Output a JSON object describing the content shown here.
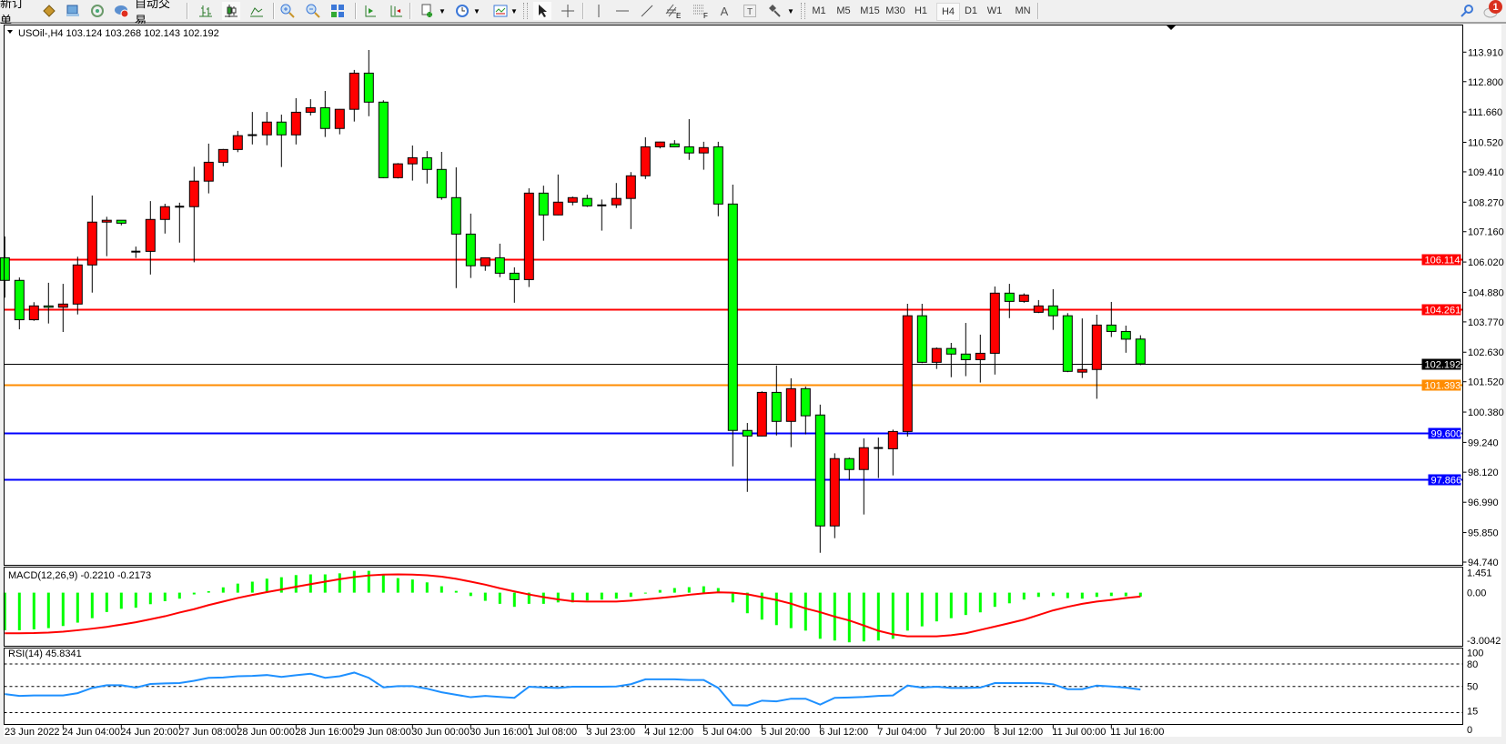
{
  "toolbar": {
    "new_order": "新订单",
    "auto_trading": "自动交易",
    "tools": [
      "cursor-icon",
      "crosshair-icon",
      "vertical-line-icon",
      "horizontal-line-icon",
      "trendline-icon",
      "equidistant-channel-icon",
      "fibonacci-icon",
      "text-icon",
      "text-label-icon",
      "arrows-icon"
    ],
    "tool_letters": {
      "channel": "E",
      "fibonacci": "F",
      "text": "A",
      "label": "T"
    },
    "timeframes": [
      "M1",
      "M5",
      "M15",
      "M30",
      "H1",
      "H4",
      "D1",
      "W1",
      "MN"
    ],
    "active_timeframe": "H4",
    "notification_count": "1"
  },
  "chart": {
    "header": "USOil-,H4  103.124 103.268 102.143 102.192",
    "symbol": "USOil-",
    "period": "H4",
    "colors": {
      "bull_candle": "#ff0000",
      "bear_candle": "#00ff00",
      "doji": "#000000",
      "macd_histogram": "#00ff00",
      "macd_signal": "#ff0000",
      "rsi_line": "#1e90ff"
    },
    "price_ticks": [
      "113.910",
      "112.800",
      "111.660",
      "110.520",
      "109.410",
      "108.270",
      "107.160",
      "106.020",
      "104.880",
      "103.770",
      "102.630",
      "101.520",
      "100.380",
      "99.240",
      "98.120",
      "96.990",
      "95.850",
      "94.740"
    ],
    "price_range": [
      94.74,
      113.91
    ],
    "horizontal_lines": [
      {
        "price": 106.114,
        "label": "106.114",
        "color": "#ff0000"
      },
      {
        "price": 104.261,
        "label": "104.261",
        "color": "#ff0000"
      },
      {
        "price": 102.192,
        "label": "102.192",
        "color": "#000000"
      },
      {
        "price": 101.393,
        "label": "101.393",
        "color": "#ff8c00"
      },
      {
        "price": 99.6,
        "label": "99.600",
        "color": "#0000ff"
      },
      {
        "price": 97.866,
        "label": "97.866",
        "color": "#0000ff"
      }
    ],
    "time_axis": {
      "first_label": "23 Jun 2022",
      "labels": [
        "24 Jun 04:00",
        "24 Jun 20:00",
        "27 Jun 08:00",
        "28 Jun 00:00",
        "28 Jun 16:00",
        "29 Jun 08:00",
        "30 Jun 00:00",
        "30 Jun 16:00",
        "1 Jul 08:00",
        "3 Jul 23:00",
        "4 Jul 12:00",
        "5 Jul 04:00",
        "5 Jul 20:00",
        "6 Jul 12:00",
        "7 Jul 04:00",
        "7 Jul 20:00",
        "8 Jul 12:00",
        "11 Jul 00:00",
        "11 Jul 16:00"
      ]
    }
  },
  "chart_data": [
    {
      "type": "candlestick",
      "title": "USOil-,H4",
      "fields": [
        "open",
        "high",
        "low",
        "close"
      ],
      "ylim": [
        94.74,
        113.91
      ],
      "ohlc": [
        [
          106.18,
          106.98,
          104.68,
          105.33
        ],
        [
          105.33,
          105.44,
          103.49,
          103.85
        ],
        [
          103.85,
          104.51,
          103.81,
          104.37
        ],
        [
          104.37,
          105.24,
          103.71,
          104.32
        ],
        [
          104.32,
          105.2,
          103.39,
          104.44
        ],
        [
          104.44,
          106.22,
          104.05,
          105.91
        ],
        [
          105.91,
          108.52,
          104.87,
          107.52
        ],
        [
          107.52,
          107.72,
          106.24,
          107.59
        ],
        [
          107.59,
          107.59,
          107.4,
          107.48
        ],
        [
          106.41,
          106.6,
          106.17,
          106.41
        ],
        [
          106.42,
          108.31,
          105.55,
          107.62
        ],
        [
          107.62,
          108.21,
          107.09,
          108.1
        ],
        [
          108.1,
          108.25,
          106.75,
          108.1
        ],
        [
          108.1,
          109.6,
          106.01,
          109.06
        ],
        [
          109.06,
          110.47,
          108.6,
          109.77
        ],
        [
          109.77,
          110.27,
          109.62,
          110.25
        ],
        [
          110.25,
          110.95,
          110.15,
          110.77
        ],
        [
          110.79,
          111.66,
          110.44,
          110.79
        ],
        [
          110.8,
          111.66,
          110.41,
          111.28
        ],
        [
          111.28,
          111.56,
          109.59,
          110.8
        ],
        [
          110.8,
          112.18,
          110.44,
          111.65
        ],
        [
          111.65,
          112.14,
          111.53,
          111.82
        ],
        [
          111.82,
          112.45,
          110.72,
          111.04
        ],
        [
          111.04,
          111.77,
          110.82,
          111.76
        ],
        [
          111.76,
          113.24,
          111.3,
          113.12
        ],
        [
          113.12,
          113.99,
          111.5,
          112.03
        ],
        [
          112.03,
          112.1,
          109.17,
          109.19
        ],
        [
          109.19,
          109.74,
          109.16,
          109.71
        ],
        [
          109.71,
          110.4,
          109.08,
          109.94
        ],
        [
          109.94,
          110.19,
          108.97,
          109.5
        ],
        [
          109.5,
          110.16,
          108.36,
          108.44
        ],
        [
          108.44,
          109.58,
          105.04,
          107.07
        ],
        [
          107.07,
          107.84,
          105.42,
          105.88
        ],
        [
          105.88,
          106.19,
          105.69,
          106.18
        ],
        [
          106.18,
          106.71,
          105.45,
          105.6
        ],
        [
          105.6,
          105.82,
          104.49,
          105.36
        ],
        [
          105.36,
          108.79,
          105.08,
          108.61
        ],
        [
          108.61,
          108.89,
          106.82,
          107.79
        ],
        [
          107.79,
          109.31,
          107.78,
          108.27
        ],
        [
          108.27,
          108.48,
          108.15,
          108.44
        ],
        [
          108.41,
          108.55,
          108.09,
          108.13
        ],
        [
          108.15,
          108.37,
          107.2,
          108.15
        ],
        [
          108.17,
          108.99,
          108.05,
          108.41
        ],
        [
          108.41,
          109.4,
          107.26,
          109.26
        ],
        [
          109.26,
          110.71,
          109.14,
          110.35
        ],
        [
          110.35,
          110.54,
          110.29,
          110.53
        ],
        [
          110.46,
          110.6,
          110.34,
          110.35
        ],
        [
          110.35,
          111.39,
          109.86,
          110.12
        ],
        [
          110.12,
          110.54,
          109.49,
          110.32
        ],
        [
          110.35,
          110.54,
          107.74,
          108.2
        ],
        [
          108.2,
          108.93,
          98.34,
          99.69
        ],
        [
          99.69,
          99.97,
          97.38,
          99.48
        ],
        [
          99.48,
          101.16,
          99.47,
          101.12
        ],
        [
          101.12,
          102.13,
          99.5,
          100.03
        ],
        [
          100.03,
          101.65,
          99.06,
          101.26
        ],
        [
          101.26,
          101.34,
          99.54,
          100.24
        ],
        [
          100.27,
          100.66,
          95.09,
          96.1
        ],
        [
          96.1,
          98.83,
          95.64,
          98.63
        ],
        [
          98.63,
          98.67,
          97.83,
          98.22
        ],
        [
          98.22,
          99.39,
          96.53,
          99.04
        ],
        [
          99.03,
          99.42,
          97.9,
          99.03
        ],
        [
          99.0,
          99.72,
          98.0,
          99.65
        ],
        [
          99.65,
          104.45,
          99.46,
          104.0
        ],
        [
          104.0,
          104.45,
          102.22,
          102.25
        ],
        [
          102.25,
          102.81,
          102.0,
          102.77
        ],
        [
          102.77,
          102.98,
          101.69,
          102.56
        ],
        [
          102.56,
          103.73,
          101.73,
          102.35
        ],
        [
          102.35,
          103.29,
          101.49,
          102.59
        ],
        [
          102.59,
          105.1,
          101.79,
          104.85
        ],
        [
          104.85,
          105.2,
          103.91,
          104.54
        ],
        [
          104.54,
          104.84,
          104.49,
          104.78
        ],
        [
          104.13,
          104.59,
          104.1,
          104.37
        ],
        [
          104.37,
          105.0,
          103.47,
          104.0
        ],
        [
          104.0,
          104.1,
          101.88,
          101.91
        ],
        [
          101.88,
          103.9,
          101.66,
          101.98
        ],
        [
          101.98,
          104.04,
          100.88,
          103.65
        ],
        [
          103.65,
          104.52,
          103.2,
          103.41
        ],
        [
          103.41,
          103.63,
          102.61,
          103.12
        ],
        [
          103.124,
          103.268,
          102.143,
          102.192
        ]
      ]
    },
    {
      "type": "bar",
      "title": "MACD(12,26,9) -0.2210 -0.2173",
      "ylim": [
        -3.0042,
        1.451
      ],
      "tick_labels": [
        "1.451",
        "0.00",
        "-3.0042"
      ],
      "series": [
        {
          "values": [
            -2.12,
            -2.12,
            -2.07,
            -2.0,
            -1.88,
            -1.69,
            -1.44,
            -1.09,
            -0.91,
            -0.85,
            -0.65,
            -0.48,
            -0.34,
            -0.1,
            0.08,
            0.3,
            0.51,
            0.62,
            0.79,
            0.87,
            0.99,
            1.03,
            1.03,
            1.09,
            1.23,
            1.23,
            0.99,
            0.82,
            0.74,
            0.58,
            0.36,
            0.1,
            -0.19,
            -0.46,
            -0.63,
            -0.8,
            -0.63,
            -0.63,
            -0.55,
            -0.55,
            -0.44,
            -0.39,
            -0.34,
            -0.24,
            -0.03,
            0.15,
            0.26,
            0.31,
            0.36,
            0.26,
            -0.55,
            -1.16,
            -1.52,
            -1.83,
            -2.0,
            -2.14,
            -2.6,
            -2.7,
            -2.8,
            -2.75,
            -2.7,
            -2.6,
            -2.14,
            -1.9,
            -1.62,
            -1.44,
            -1.26,
            -1.11,
            -0.8,
            -0.6,
            -0.39,
            -0.24,
            -0.19,
            -0.31,
            -0.34,
            -0.24,
            -0.19,
            -0.2,
            -0.221
          ]
        },
        {
          "values": [
            -2.29,
            -2.29,
            -2.28,
            -2.25,
            -2.2,
            -2.12,
            -2.03,
            -1.93,
            -1.8,
            -1.67,
            -1.5,
            -1.33,
            -1.12,
            -0.93,
            -0.7,
            -0.5,
            -0.3,
            -0.13,
            0.03,
            0.18,
            0.33,
            0.48,
            0.62,
            0.76,
            0.88,
            0.97,
            1.02,
            1.03,
            1.02,
            0.98,
            0.9,
            0.78,
            0.62,
            0.45,
            0.25,
            0.07,
            -0.1,
            -0.25,
            -0.38,
            -0.48,
            -0.5,
            -0.5,
            -0.5,
            -0.45,
            -0.38,
            -0.3,
            -0.22,
            -0.12,
            -0.04,
            0.02,
            0.0,
            -0.09,
            -0.25,
            -0.41,
            -0.62,
            -0.89,
            -1.1,
            -1.35,
            -1.57,
            -1.85,
            -2.15,
            -2.35,
            -2.46,
            -2.46,
            -2.46,
            -2.4,
            -2.29,
            -2.1,
            -1.91,
            -1.72,
            -1.52,
            -1.26,
            -1.0,
            -0.8,
            -0.63,
            -0.5,
            -0.41,
            -0.3,
            -0.217
          ]
        }
      ]
    },
    {
      "type": "line",
      "title": "RSI(14) 45.8341",
      "ylim": [
        0,
        100
      ],
      "levels": [
        80,
        50,
        15
      ],
      "tick_labels": [
        "100",
        "80",
        "50",
        "15",
        "0"
      ],
      "values": [
        39.7,
        37.3,
        38,
        38,
        38,
        41,
        48,
        51.6,
        51.6,
        48.4,
        53.3,
        54,
        54.5,
        57.5,
        61.5,
        62,
        63.6,
        64,
        65.2,
        62.7,
        65,
        66.9,
        61.5,
        63.6,
        68.5,
        61.5,
        48.8,
        50.4,
        50.4,
        47,
        42.2,
        38.8,
        35.6,
        37.3,
        36,
        34.8,
        49.6,
        48.5,
        48,
        49.6,
        49.6,
        49.6,
        50,
        53,
        59.5,
        59.5,
        59.5,
        58.6,
        58.6,
        48,
        25,
        24.5,
        31,
        30,
        33.6,
        33.6,
        25.8,
        34.8,
        35.2,
        36,
        37.3,
        38,
        51.2,
        48.5,
        49.6,
        48,
        48,
        48.5,
        54.5,
        54.5,
        54.5,
        54.5,
        52.9,
        46.3,
        46.3,
        51.2,
        50,
        48.4,
        45.83
      ]
    }
  ]
}
